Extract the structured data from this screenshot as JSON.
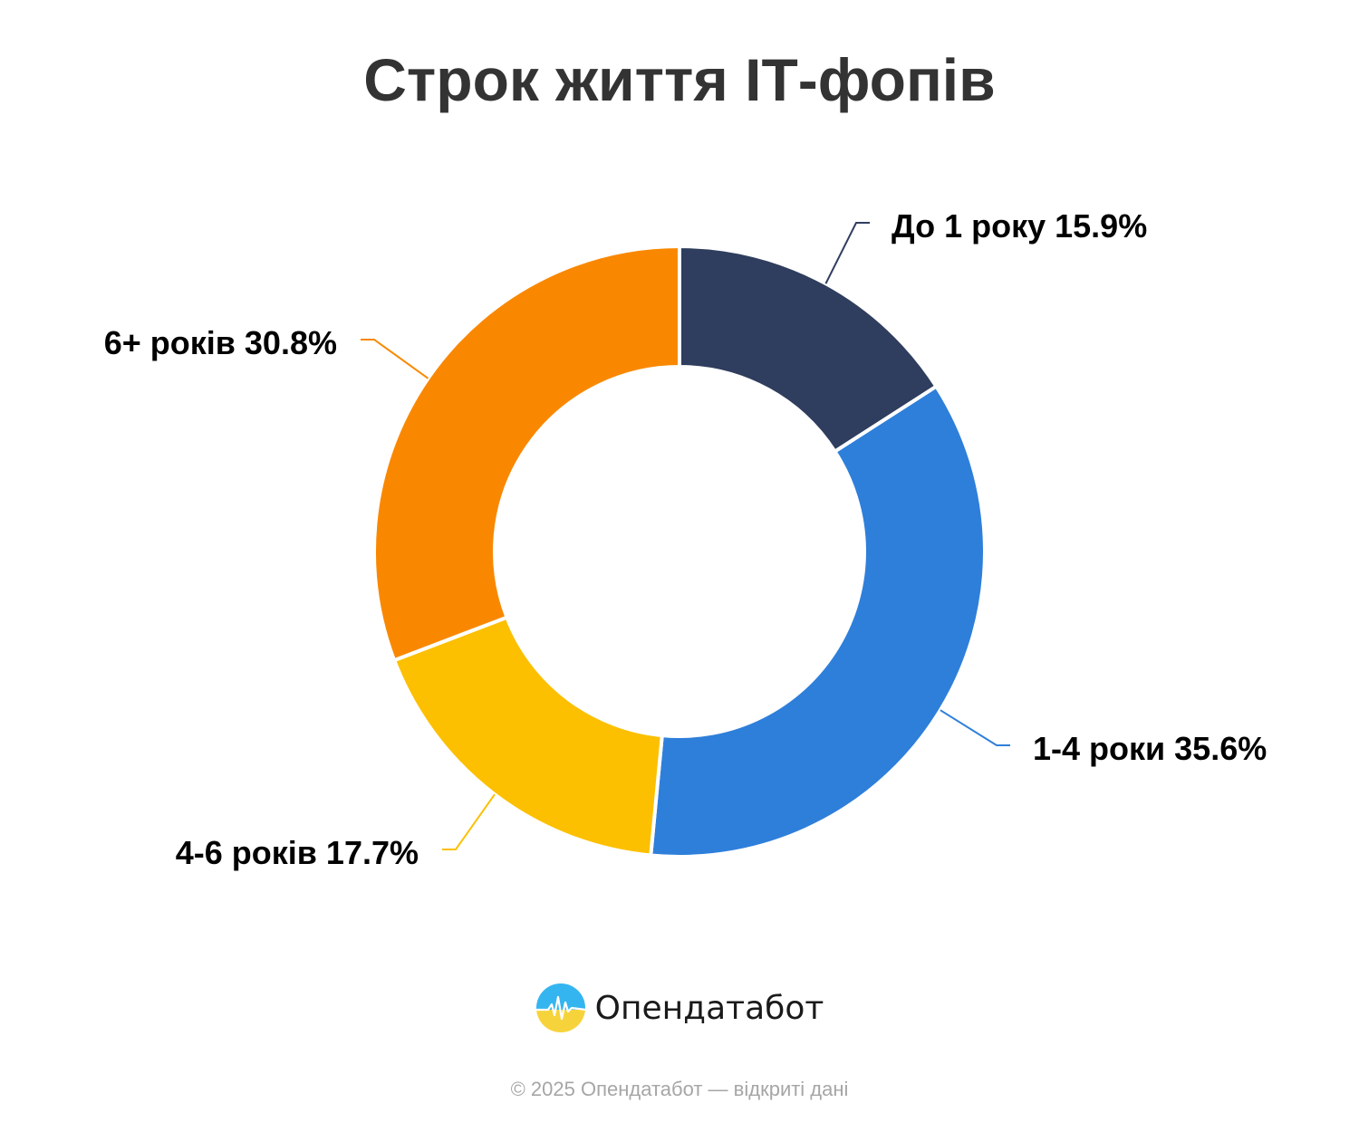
{
  "title": "Строк життя ІТ-фопів",
  "brand": {
    "name": "Опендатабот",
    "logo_icon": "opendatabot-logo-icon"
  },
  "footer": {
    "copyright": "© 2025 Опендатабот — відкриті дані"
  },
  "chart_data": {
    "type": "pie",
    "donut": true,
    "title": "Строк життя ІТ-фопів",
    "slices": [
      {
        "label": "До 1 року",
        "value": 15.9,
        "display": "До 1 року 15.9%",
        "color": "#2f3d5e"
      },
      {
        "label": "1-4 роки",
        "value": 35.6,
        "display": "1-4 роки 35.6%",
        "color": "#2e7fda"
      },
      {
        "label": "4-6 років",
        "value": 17.7,
        "display": "4-6 років 17.7%",
        "color": "#fcc000"
      },
      {
        "label": "6+ років",
        "value": 30.8,
        "display": "6+ років 30.8%",
        "color": "#f98800"
      }
    ],
    "unit": "%",
    "start": "12 o'clock",
    "direction": "clockwise",
    "legend": "none",
    "labels": "outside with leader lines"
  }
}
